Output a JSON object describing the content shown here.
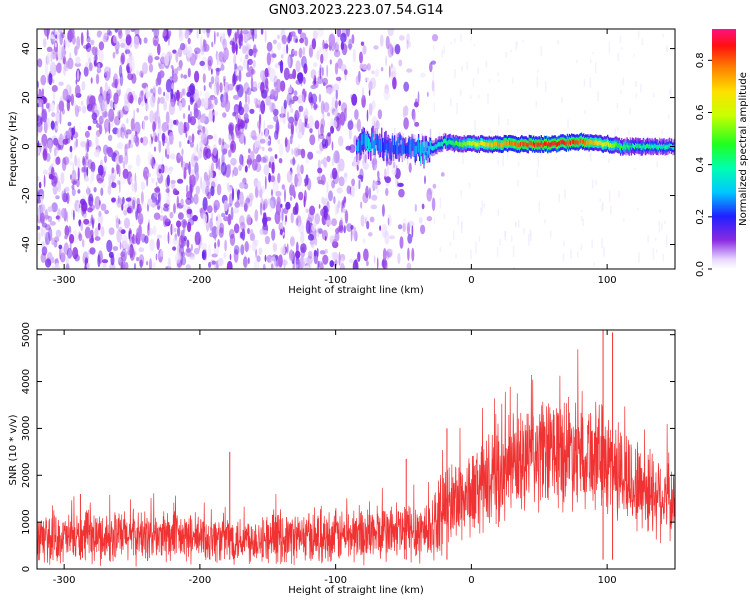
{
  "title": "GN03.2023.223.07.54.G14",
  "chart_data": [
    {
      "type": "heatmap",
      "xlabel": "Height of straight line (km)",
      "ylabel": "Frequency (Hz)",
      "xlim": [
        -320,
        150
      ],
      "ylim": [
        -50,
        48
      ],
      "xticks": [
        -300,
        -200,
        -100,
        0,
        100
      ],
      "yticks": [
        -40,
        -20,
        0,
        20,
        40
      ],
      "colorbar": {
        "label": "Normalized spectral amplitude",
        "range": [
          0,
          0.92
        ],
        "ticks": [
          0.0,
          0.2,
          0.4,
          0.6,
          0.8
        ],
        "colormap": "white-purple-blue-cyan-green-yellow-orange-red-magenta"
      },
      "features": {
        "noise_region_km": [
          -320,
          -30
        ],
        "signal_band_start_km": -85,
        "signal_center_freq_hz": 1,
        "signal_band": [
          {
            "x": -85,
            "f": 1,
            "amp": 0.25
          },
          {
            "x": -75,
            "f": 2,
            "amp": 0.3
          },
          {
            "x": -60,
            "f": 0,
            "amp": 0.2
          },
          {
            "x": -45,
            "f": 0,
            "amp": 0.25
          },
          {
            "x": -35,
            "f": -2,
            "amp": 0.3
          },
          {
            "x": -20,
            "f": 2,
            "amp": 0.4
          },
          {
            "x": -10,
            "f": 1,
            "amp": 0.5
          },
          {
            "x": 0,
            "f": 1,
            "amp": 0.6
          },
          {
            "x": 20,
            "f": 1,
            "amp": 0.75
          },
          {
            "x": 40,
            "f": 1,
            "amp": 0.82
          },
          {
            "x": 60,
            "f": 1,
            "amp": 0.86
          },
          {
            "x": 80,
            "f": 2,
            "amp": 0.8
          },
          {
            "x": 100,
            "f": 1,
            "amp": 0.6
          },
          {
            "x": 110,
            "f": 0,
            "amp": 0.45
          },
          {
            "x": 130,
            "f": 0,
            "amp": 0.4
          },
          {
            "x": 150,
            "f": 0,
            "amp": 0.35
          }
        ]
      }
    },
    {
      "type": "line",
      "xlabel": "Height of straight line (km)",
      "ylabel": "SNR (10 * v/v)",
      "xlim": [
        -320,
        150
      ],
      "ylim": [
        0,
        5100
      ],
      "xticks": [
        -300,
        -200,
        -100,
        0,
        100
      ],
      "yticks": [
        0,
        1000,
        2000,
        3000,
        4000,
        5000
      ],
      "color": "#f03232",
      "envelope": {
        "x": [
          -320,
          -300,
          -250,
          -200,
          -150,
          -100,
          -50,
          -30,
          -20,
          -10,
          0,
          20,
          40,
          60,
          80,
          100,
          120,
          140,
          150
        ],
        "mean": [
          650,
          650,
          700,
          650,
          650,
          700,
          800,
          850,
          1300,
          1500,
          1600,
          2000,
          2300,
          2500,
          2600,
          2300,
          1800,
          1600,
          1400
        ],
        "spread": [
          500,
          550,
          600,
          550,
          550,
          600,
          700,
          750,
          900,
          1000,
          1000,
          1100,
          1200,
          1300,
          1300,
          1200,
          1100,
          1000,
          900
        ]
      },
      "spikes": [
        {
          "x": -288,
          "y": 1600
        },
        {
          "x": -178,
          "y": 2500
        },
        {
          "x": -48,
          "y": 2350
        },
        {
          "x": -18,
          "y": 3000
        },
        {
          "x": 97,
          "y": 5100
        },
        {
          "x": 104,
          "y": 5050
        }
      ]
    }
  ]
}
